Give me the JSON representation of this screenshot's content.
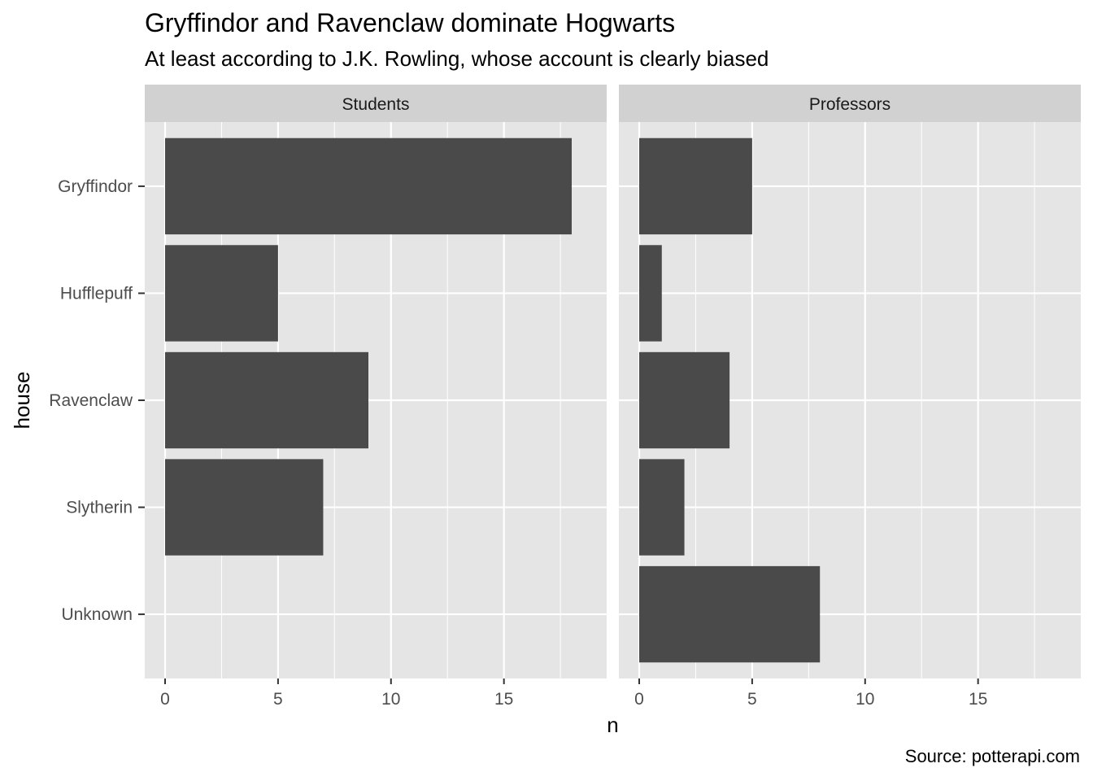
{
  "chart_data": {
    "type": "bar",
    "orientation": "horizontal",
    "title": "Gryffindor and Ravenclaw dominate Hogwarts",
    "subtitle": "At least according to J.K. Rowling, whose account is clearly biased",
    "caption": "Source: potterapi.com",
    "xlabel": "n",
    "ylabel": "house",
    "categories": [
      "Gryffindor",
      "Hufflepuff",
      "Ravenclaw",
      "Slytherin",
      "Unknown"
    ],
    "xlim": [
      0,
      18.9
    ],
    "xticks": [
      0,
      5,
      10,
      15
    ],
    "grid": true,
    "bar_color": "#4a4a4a",
    "panel_background": "#e5e5e5",
    "strip_background": "#d1d1d1",
    "facets": [
      {
        "label": "Students",
        "values": [
          18,
          5,
          9,
          7,
          0
        ]
      },
      {
        "label": "Professors",
        "values": [
          5,
          1,
          4,
          2,
          8
        ]
      }
    ]
  }
}
